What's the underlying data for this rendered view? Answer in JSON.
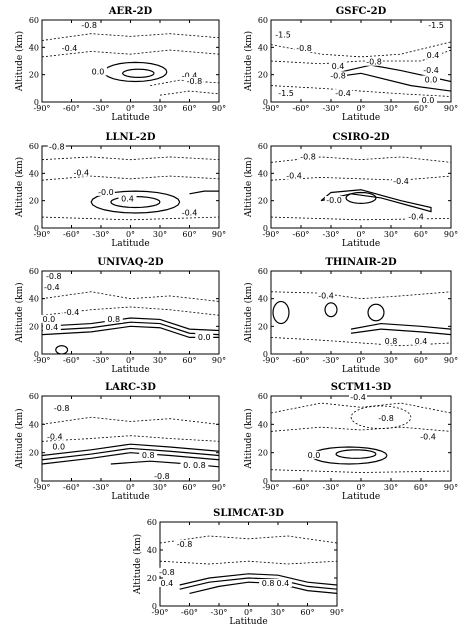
{
  "chart_data": [
    {
      "type": "contour",
      "title": "AER-2D",
      "xlabel": "Latitude",
      "ylabel": "Altitude (km)",
      "xlim": [
        -90,
        90
      ],
      "ylim": [
        0,
        60
      ],
      "xticks": [
        "-90°",
        "-60°",
        "-30°",
        "0°",
        "30°",
        "60°",
        "90°"
      ],
      "yticks": [
        "0",
        "20",
        "40",
        "60"
      ],
      "contour_labels": [
        {
          "text": "-0.8",
          "lat": -42,
          "alt": 55
        },
        {
          "text": "-0.4",
          "lat": -62,
          "alt": 38
        },
        {
          "text": "0.0",
          "lat": -33,
          "alt": 21
        },
        {
          "text": "-0.4",
          "lat": 60,
          "alt": 18
        },
        {
          "text": "-0.8",
          "lat": 65,
          "alt": 14
        }
      ]
    },
    {
      "type": "contour",
      "title": "GSFC-2D",
      "xlabel": "Latitude",
      "ylabel": "Altitude (km)",
      "xlim": [
        -90,
        90
      ],
      "ylim": [
        0,
        60
      ],
      "xticks": [
        "-90°",
        "-60°",
        "-30°",
        "0°",
        "30°",
        "60°",
        "90°"
      ],
      "yticks": [
        "0",
        "20",
        "40",
        "60"
      ],
      "contour_labels": [
        {
          "text": "-1.5",
          "lat": -78,
          "alt": 48
        },
        {
          "text": "-1.5",
          "lat": 75,
          "alt": 55
        },
        {
          "text": "-0.8",
          "lat": -57,
          "alt": 38
        },
        {
          "text": "0.4",
          "lat": 72,
          "alt": 33
        },
        {
          "text": "-0.8",
          "lat": 13,
          "alt": 28
        },
        {
          "text": "0.4",
          "lat": -23,
          "alt": 25
        },
        {
          "text": "-0.8",
          "lat": -23,
          "alt": 18
        },
        {
          "text": "-0.4",
          "lat": 70,
          "alt": 22
        },
        {
          "text": "0.0",
          "lat": 70,
          "alt": 15
        },
        {
          "text": "-1.5",
          "lat": -75,
          "alt": 5
        },
        {
          "text": "-0.4",
          "lat": -18,
          "alt": 5
        },
        {
          "text": "0.0",
          "lat": 67,
          "alt": 0
        }
      ]
    },
    {
      "type": "contour",
      "title": "LLNL-2D",
      "xlabel": "Latitude",
      "ylabel": "Altitude (km)",
      "xlim": [
        -90,
        90
      ],
      "ylim": [
        0,
        60
      ],
      "xticks": [
        "-90°",
        "-60°",
        "-30°",
        "0°",
        "30°",
        "60°",
        "90°"
      ],
      "yticks": [
        "0",
        "20",
        "40",
        "60"
      ],
      "contour_labels": [
        {
          "text": "-0.8",
          "lat": -75,
          "alt": 58
        },
        {
          "text": "-0.4",
          "lat": -50,
          "alt": 39
        },
        {
          "text": "-0.0",
          "lat": -25,
          "alt": 25
        },
        {
          "text": "0.4",
          "lat": -3,
          "alt": 20
        },
        {
          "text": "-0.4",
          "lat": 60,
          "alt": 10
        }
      ]
    },
    {
      "type": "contour",
      "title": "CSIRO-2D",
      "xlabel": "Latitude",
      "ylabel": "Altitude (km)",
      "xlim": [
        -90,
        90
      ],
      "ylim": [
        0,
        60
      ],
      "xticks": [
        "-90°",
        "-60°",
        "-30°",
        "0°",
        "30°",
        "60°",
        "90°"
      ],
      "yticks": [
        "0",
        "20",
        "40",
        "60"
      ],
      "contour_labels": [
        {
          "text": "-0.8",
          "lat": -53,
          "alt": 51
        },
        {
          "text": "-0.4",
          "lat": -67,
          "alt": 37
        },
        {
          "text": "-0.4",
          "lat": 40,
          "alt": 33
        },
        {
          "text": "-0.0",
          "lat": -27,
          "alt": 19
        },
        {
          "text": "-0.4",
          "lat": 55,
          "alt": 7
        }
      ]
    },
    {
      "type": "contour",
      "title": "UNIVAQ-2D",
      "xlabel": "Latitude",
      "ylabel": "Altitude (km)",
      "xlim": [
        -90,
        90
      ],
      "ylim": [
        0,
        60
      ],
      "xticks": [
        "-90°",
        "-60°",
        "-30°",
        "0°",
        "30°",
        "60°",
        "90°"
      ],
      "yticks": [
        "0",
        "20",
        "40",
        "60"
      ],
      "contour_labels": [
        {
          "text": "-0.8",
          "lat": -78,
          "alt": 55
        },
        {
          "text": "-0.4",
          "lat": -80,
          "alt": 47
        },
        {
          "text": "-0.4",
          "lat": -60,
          "alt": 29
        },
        {
          "text": "0.0",
          "lat": -83,
          "alt": 24
        },
        {
          "text": "0.4",
          "lat": -80,
          "alt": 18
        },
        {
          "text": "0.8",
          "lat": -17,
          "alt": 24
        },
        {
          "text": "0.0",
          "lat": 75,
          "alt": 11
        }
      ]
    },
    {
      "type": "contour",
      "title": "THINAIR-2D",
      "xlabel": "Latitude",
      "ylabel": "Altitude (km)",
      "xlim": [
        -90,
        90
      ],
      "ylim": [
        0,
        60
      ],
      "xticks": [
        "-90°",
        "-60°",
        "-30°",
        "0°",
        "30°",
        "60°",
        "90°"
      ],
      "yticks": [
        "0",
        "20",
        "40",
        "60"
      ],
      "contour_labels": [
        {
          "text": "-0.4",
          "lat": -35,
          "alt": 41
        },
        {
          "text": "0.8",
          "lat": 30,
          "alt": 8
        },
        {
          "text": "0.4",
          "lat": 60,
          "alt": 8
        }
      ]
    },
    {
      "type": "contour",
      "title": "LARC-3D",
      "xlabel": "Latitude",
      "ylabel": "Altitude (km)",
      "xlim": [
        -90,
        90
      ],
      "ylim": [
        0,
        60
      ],
      "xticks": [
        "-90°",
        "-60°",
        "-30°",
        "0°",
        "30°",
        "60°",
        "90°"
      ],
      "yticks": [
        "0",
        "20",
        "40",
        "60"
      ],
      "contour_labels": [
        {
          "text": "-0.8",
          "lat": -70,
          "alt": 50
        },
        {
          "text": "-0.4",
          "lat": -77,
          "alt": 30
        },
        {
          "text": "0.0",
          "lat": -73,
          "alt": 23
        },
        {
          "text": "0.8",
          "lat": 18,
          "alt": 17
        },
        {
          "text": "0.4",
          "lat": 60,
          "alt": 10
        },
        {
          "text": "0.8",
          "lat": 70,
          "alt": 10
        },
        {
          "text": "-0.8",
          "lat": 32,
          "alt": 2
        }
      ]
    },
    {
      "type": "contour",
      "title": "SCTM1-3D",
      "xlabel": "Latitude",
      "ylabel": "Altitude (km)",
      "xlim": [
        -90,
        90
      ],
      "ylim": [
        0,
        60
      ],
      "xticks": [
        "-90°",
        "-60°",
        "-30°",
        "0°",
        "30°",
        "60°",
        "90°"
      ],
      "yticks": [
        "0",
        "20",
        "40",
        "60"
      ],
      "contour_labels": [
        {
          "text": "-0.4",
          "lat": -3,
          "alt": 58
        },
        {
          "text": "-0.8",
          "lat": 25,
          "alt": 43
        },
        {
          "text": "0.0",
          "lat": -47,
          "alt": 17
        },
        {
          "text": "-0.4",
          "lat": 67,
          "alt": 30
        }
      ]
    },
    {
      "type": "contour",
      "title": "SLIMCAT-3D",
      "xlabel": "Latitude",
      "ylabel": "Altitude (km)",
      "xlim": [
        -90,
        90
      ],
      "ylim": [
        0,
        60
      ],
      "xticks": [
        "-90°",
        "-60°",
        "-30°",
        "0°",
        "30°",
        "60°",
        "90°"
      ],
      "yticks": [
        "0",
        "20",
        "40",
        "60"
      ],
      "contour_labels": [
        {
          "text": "-0.8",
          "lat": -65,
          "alt": 43
        },
        {
          "text": "-0.8",
          "lat": -83,
          "alt": 23
        },
        {
          "text": "0.4",
          "lat": -83,
          "alt": 15
        },
        {
          "text": "0.8",
          "lat": 20,
          "alt": 15
        },
        {
          "text": "0.4",
          "lat": 35,
          "alt": 15
        }
      ]
    }
  ]
}
